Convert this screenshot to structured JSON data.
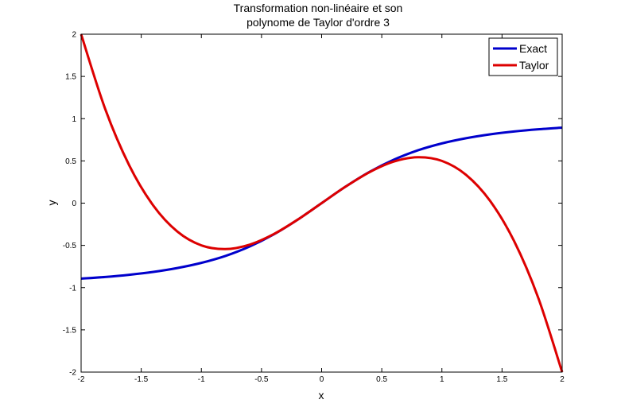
{
  "chart_data": {
    "type": "line",
    "title": [
      "Transformation non-linéaire et son",
      "polynome de Taylor d'ordre 3"
    ],
    "xlabel": "x",
    "ylabel": "y",
    "xlim": [
      -2,
      2
    ],
    "ylim": [
      -2,
      2
    ],
    "xticks": [
      -2,
      -1.5,
      -1,
      -0.5,
      0,
      0.5,
      1,
      1.5,
      2
    ],
    "xtick_labels": [
      "-2",
      "-1.5",
      "-1",
      "-0.5",
      "0",
      "0.5",
      "1",
      "1.5",
      "2"
    ],
    "yticks": [
      -2,
      -1.5,
      -1,
      -0.5,
      0,
      0.5,
      1,
      1.5,
      2
    ],
    "ytick_labels": [
      "-2",
      "-1.5",
      "-1",
      "-0.5",
      "0",
      "0.5",
      "1",
      "1.5",
      "2"
    ],
    "grid": false,
    "legend_position": "top-right",
    "x": [
      -2,
      -1.8,
      -1.6,
      -1.4,
      -1.2,
      -1,
      -0.8,
      -0.6,
      -0.4,
      -0.2,
      0,
      0.2,
      0.4,
      0.6,
      0.8,
      1,
      1.2,
      1.4,
      1.6,
      1.8,
      2
    ],
    "series": [
      {
        "name": "Exact",
        "color": "#0000cc",
        "values": [
          -0.894,
          -0.874,
          -0.848,
          -0.814,
          -0.768,
          -0.707,
          -0.625,
          -0.514,
          -0.371,
          -0.196,
          0,
          0.196,
          0.371,
          0.514,
          0.625,
          0.707,
          0.768,
          0.814,
          0.848,
          0.874,
          0.894
        ]
      },
      {
        "name": "Taylor",
        "color": "#dd0000",
        "values": [
          2.0,
          1.116,
          0.448,
          -0.028,
          -0.336,
          -0.5,
          -0.544,
          -0.492,
          -0.368,
          -0.196,
          0,
          0.196,
          0.368,
          0.492,
          0.544,
          0.5,
          0.336,
          0.028,
          -0.448,
          -1.116,
          -2.0
        ]
      }
    ]
  }
}
